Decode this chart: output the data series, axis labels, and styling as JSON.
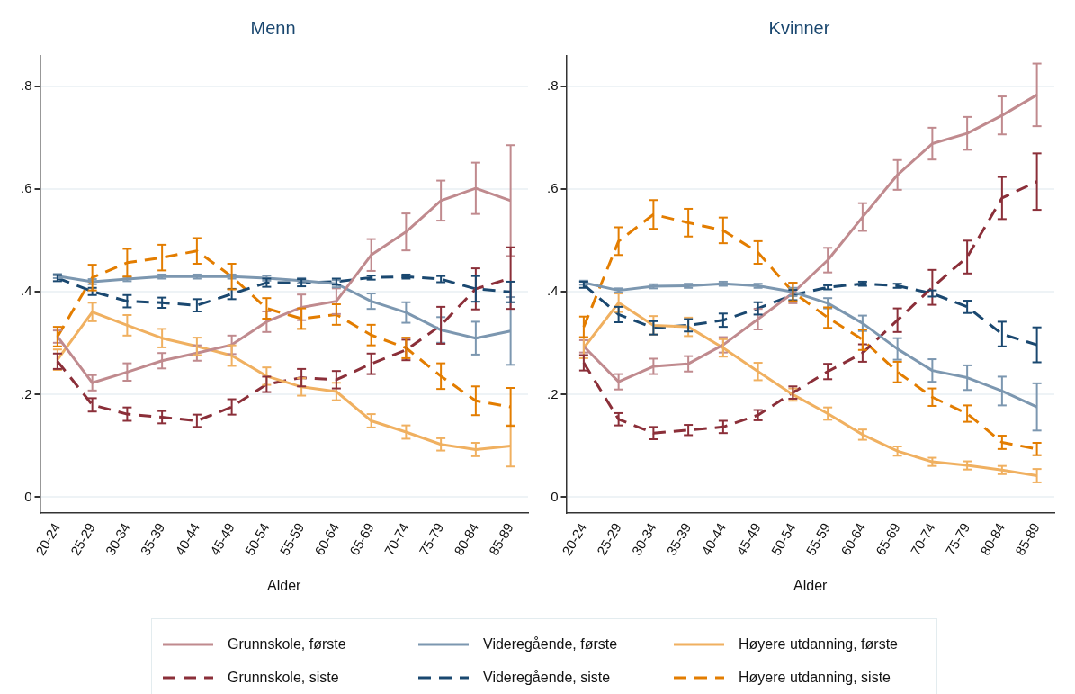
{
  "chart_data": [
    {
      "type": "line",
      "title": "Menn",
      "xlabel": "Alder",
      "categories": [
        "20-24",
        "25-29",
        "30-34",
        "35-39",
        "40-44",
        "45-49",
        "50-54",
        "55-59",
        "60-64",
        "65-69",
        "70-74",
        "75-79",
        "80-84",
        "85-89"
      ],
      "ylim": [
        -0.03,
        0.86
      ],
      "yticks": [
        {
          "value": 0,
          "label": "0"
        },
        {
          "value": 0.2,
          "label": ".2"
        },
        {
          "value": 0.4,
          "label": ".4"
        },
        {
          "value": 0.6,
          "label": ".6"
        },
        {
          "value": 0.8,
          "label": ".8"
        }
      ],
      "grid": "y",
      "marker": "none",
      "legend": "bottom",
      "series": [
        {
          "name": "Grunnskole, første",
          "color": "#c08a8e",
          "line_style": "solid",
          "values": [
            0.313,
            0.223,
            0.244,
            0.266,
            0.281,
            0.297,
            0.342,
            0.37,
            0.382,
            0.472,
            0.517,
            0.578,
            0.602,
            0.578
          ],
          "errors": [
            0.012,
            0.015,
            0.017,
            0.015,
            0.015,
            0.018,
            0.02,
            0.025,
            0.025,
            0.031,
            0.036,
            0.039,
            0.05,
            0.108
          ]
        },
        {
          "name": "Videregående, første",
          "color": "#7c97b0",
          "line_style": "solid",
          "values": [
            0.431,
            0.42,
            0.425,
            0.43,
            0.43,
            0.43,
            0.427,
            0.422,
            0.416,
            0.382,
            0.36,
            0.326,
            0.31,
            0.324
          ],
          "errors": [
            0.004,
            0.005,
            0.004,
            0.004,
            0.004,
            0.004,
            0.005,
            0.005,
            0.007,
            0.015,
            0.02,
            0.025,
            0.032,
            0.066
          ]
        },
        {
          "name": "Høyere utdanning, første",
          "color": "#f0b060",
          "line_style": "solid",
          "values": [
            0.268,
            0.361,
            0.335,
            0.31,
            0.294,
            0.276,
            0.236,
            0.215,
            0.206,
            0.149,
            0.127,
            0.103,
            0.093,
            0.1
          ],
          "errors": [
            0.02,
            0.018,
            0.02,
            0.018,
            0.017,
            0.02,
            0.017,
            0.017,
            0.017,
            0.013,
            0.013,
            0.012,
            0.013,
            0.04
          ]
        },
        {
          "name": "Grunnskole, siste",
          "color": "#8b2f39",
          "line_style": "dashed",
          "values": [
            0.265,
            0.18,
            0.162,
            0.156,
            0.149,
            0.176,
            0.22,
            0.233,
            0.229,
            0.26,
            0.287,
            0.335,
            0.406,
            0.427
          ],
          "errors": [
            0.015,
            0.013,
            0.013,
            0.012,
            0.012,
            0.015,
            0.015,
            0.017,
            0.017,
            0.02,
            0.02,
            0.036,
            0.04,
            0.06
          ]
        },
        {
          "name": "Videregående, siste",
          "color": "#1a4870",
          "line_style": "dashed",
          "values": [
            0.427,
            0.401,
            0.382,
            0.379,
            0.374,
            0.396,
            0.418,
            0.418,
            0.42,
            0.428,
            0.43,
            0.425,
            0.406,
            0.4
          ],
          "errors": [
            0.006,
            0.007,
            0.012,
            0.01,
            0.012,
            0.01,
            0.008,
            0.007,
            0.006,
            0.004,
            0.004,
            0.006,
            0.025,
            0.02
          ]
        },
        {
          "name": "Høyere utdanning, siste",
          "color": "#e37d00",
          "line_style": "dashed",
          "values": [
            0.313,
            0.428,
            0.457,
            0.467,
            0.48,
            0.43,
            0.368,
            0.348,
            0.356,
            0.316,
            0.291,
            0.236,
            0.188,
            0.176
          ],
          "errors": [
            0.019,
            0.025,
            0.027,
            0.025,
            0.025,
            0.025,
            0.02,
            0.02,
            0.02,
            0.02,
            0.02,
            0.025,
            0.028,
            0.037
          ]
        }
      ]
    },
    {
      "type": "line",
      "title": "Kvinner",
      "xlabel": "Alder",
      "categories": [
        "20-24",
        "25-29",
        "30-34",
        "35-39",
        "40-44",
        "45-49",
        "50-54",
        "55-59",
        "60-64",
        "65-69",
        "70-74",
        "75-79",
        "80-84",
        "85-89"
      ],
      "ylim": [
        -0.03,
        0.86
      ],
      "yticks": [
        {
          "value": 0,
          "label": "0"
        },
        {
          "value": 0.2,
          "label": ".2"
        },
        {
          "value": 0.4,
          "label": ".4"
        },
        {
          "value": 0.6,
          "label": ".6"
        },
        {
          "value": 0.8,
          "label": ".8"
        }
      ],
      "grid": "y",
      "marker": "none",
      "series": [
        {
          "color": "#c08a8e",
          "line_style": "solid",
          "values": [
            0.294,
            0.225,
            0.255,
            0.26,
            0.297,
            0.347,
            0.398,
            0.462,
            0.546,
            0.628,
            0.689,
            0.709,
            0.744,
            0.784
          ],
          "errors": [
            0.012,
            0.015,
            0.015,
            0.015,
            0.015,
            0.02,
            0.02,
            0.024,
            0.027,
            0.029,
            0.031,
            0.032,
            0.037,
            0.061
          ]
        },
        {
          "color": "#7c97b0",
          "line_style": "solid",
          "values": [
            0.418,
            0.403,
            0.411,
            0.412,
            0.416,
            0.412,
            0.4,
            0.378,
            0.339,
            0.289,
            0.247,
            0.233,
            0.207,
            0.176
          ],
          "errors": [
            0.004,
            0.004,
            0.004,
            0.004,
            0.004,
            0.004,
            0.008,
            0.01,
            0.015,
            0.021,
            0.022,
            0.024,
            0.028,
            0.046
          ]
        },
        {
          "color": "#f0b060",
          "line_style": "solid",
          "values": [
            0.291,
            0.379,
            0.335,
            0.332,
            0.291,
            0.245,
            0.2,
            0.163,
            0.122,
            0.09,
            0.069,
            0.062,
            0.053,
            0.042
          ],
          "errors": [
            0.02,
            0.018,
            0.018,
            0.018,
            0.017,
            0.017,
            0.012,
            0.012,
            0.01,
            0.009,
            0.008,
            0.008,
            0.008,
            0.013
          ]
        },
        {
          "color": "#8b2f39",
          "line_style": "dashed",
          "values": [
            0.262,
            0.152,
            0.125,
            0.131,
            0.137,
            0.16,
            0.204,
            0.245,
            0.281,
            0.345,
            0.409,
            0.468,
            0.583,
            0.615
          ],
          "errors": [
            0.015,
            0.012,
            0.012,
            0.01,
            0.012,
            0.01,
            0.012,
            0.015,
            0.017,
            0.023,
            0.034,
            0.032,
            0.041,
            0.055
          ]
        },
        {
          "color": "#1a4870",
          "line_style": "dashed",
          "values": [
            0.414,
            0.356,
            0.33,
            0.335,
            0.345,
            0.368,
            0.394,
            0.409,
            0.416,
            0.412,
            0.397,
            0.371,
            0.318,
            0.297
          ],
          "errors": [
            0.006,
            0.015,
            0.013,
            0.012,
            0.013,
            0.012,
            0.01,
            0.004,
            0.004,
            0.004,
            0.006,
            0.012,
            0.024,
            0.034
          ]
        },
        {
          "color": "#e37d00",
          "line_style": "dashed",
          "values": [
            0.332,
            0.499,
            0.551,
            0.535,
            0.52,
            0.477,
            0.4,
            0.35,
            0.307,
            0.244,
            0.195,
            0.163,
            0.107,
            0.094
          ],
          "errors": [
            0.02,
            0.027,
            0.028,
            0.027,
            0.025,
            0.022,
            0.018,
            0.02,
            0.02,
            0.02,
            0.017,
            0.016,
            0.013,
            0.012
          ]
        }
      ]
    }
  ]
}
